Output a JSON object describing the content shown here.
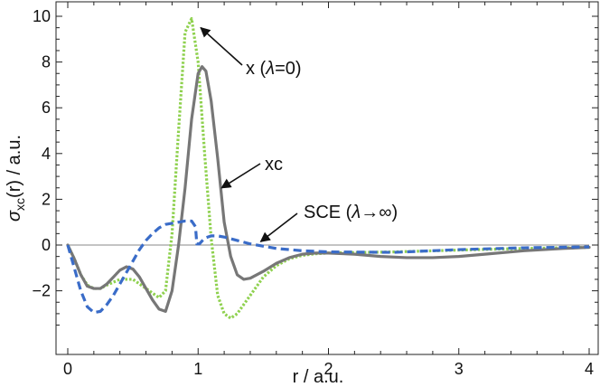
{
  "chart_data": {
    "type": "line",
    "xlabel": "r / a.u.",
    "ylabel": "σxc(r) / a.u.",
    "ylabel_parts": {
      "sym": "σ",
      "sub": "xc",
      "rest": "(r) / a.u."
    },
    "xlim": [
      0,
      4
    ],
    "ylim": [
      -4,
      10
    ],
    "x_ticks": [
      0,
      1,
      2,
      3,
      4
    ],
    "x_tick_labels": [
      "0",
      "1",
      "2",
      "3",
      "4"
    ],
    "y_ticks": [
      -2,
      0,
      2,
      4,
      6,
      8,
      10
    ],
    "y_tick_labels": [
      "−2",
      "0",
      "2",
      "4",
      "6",
      "8",
      "10"
    ],
    "grid": false,
    "zero_line": true,
    "series": [
      {
        "name": "x (λ=0)",
        "color": "#8fd14f",
        "style": "dotted",
        "x": [
          0.0,
          0.05,
          0.1,
          0.15,
          0.2,
          0.25,
          0.3,
          0.4,
          0.5,
          0.6,
          0.7,
          0.75,
          0.8,
          0.85,
          0.9,
          0.95,
          1.0,
          1.05,
          1.1,
          1.15,
          1.2,
          1.25,
          1.3,
          1.4,
          1.5,
          1.6,
          1.7,
          1.8,
          1.9,
          2.0,
          2.5,
          3.0,
          3.5,
          4.0
        ],
        "y": [
          0.0,
          -0.6,
          -1.3,
          -1.75,
          -1.9,
          -1.9,
          -1.75,
          -1.5,
          -1.5,
          -1.9,
          -2.3,
          -2.0,
          0.5,
          5.0,
          9.3,
          9.9,
          8.0,
          4.0,
          0.3,
          -2.2,
          -3.0,
          -3.2,
          -3.0,
          -2.2,
          -1.4,
          -0.9,
          -0.6,
          -0.45,
          -0.38,
          -0.35,
          -0.3,
          -0.22,
          -0.15,
          -0.1
        ]
      },
      {
        "name": "xc",
        "color": "#777777",
        "style": "solid",
        "x": [
          0.0,
          0.05,
          0.1,
          0.15,
          0.2,
          0.25,
          0.3,
          0.35,
          0.4,
          0.45,
          0.5,
          0.55,
          0.6,
          0.65,
          0.7,
          0.75,
          0.8,
          0.85,
          0.9,
          0.95,
          1.0,
          1.03,
          1.06,
          1.1,
          1.15,
          1.2,
          1.25,
          1.3,
          1.35,
          1.4,
          1.5,
          1.6,
          1.7,
          1.8,
          1.9,
          2.0,
          2.2,
          2.4,
          2.6,
          2.8,
          3.0,
          3.2,
          3.5,
          3.8,
          4.0
        ],
        "y": [
          0.0,
          -0.6,
          -1.3,
          -1.8,
          -1.9,
          -1.9,
          -1.7,
          -1.4,
          -1.1,
          -0.95,
          -1.05,
          -1.4,
          -1.9,
          -2.4,
          -2.8,
          -2.9,
          -2.0,
          0.0,
          2.5,
          5.5,
          7.5,
          7.8,
          7.6,
          6.3,
          3.8,
          1.0,
          -0.5,
          -1.3,
          -1.5,
          -1.45,
          -1.15,
          -0.8,
          -0.55,
          -0.4,
          -0.35,
          -0.35,
          -0.4,
          -0.5,
          -0.55,
          -0.55,
          -0.5,
          -0.4,
          -0.25,
          -0.15,
          -0.1
        ]
      },
      {
        "name": "SCE (λ→∞)",
        "color": "#3a6cc8",
        "style": "dashed",
        "x": [
          0.0,
          0.05,
          0.1,
          0.15,
          0.2,
          0.25,
          0.3,
          0.35,
          0.4,
          0.45,
          0.5,
          0.55,
          0.6,
          0.65,
          0.7,
          0.75,
          0.8,
          0.85,
          0.9,
          0.95,
          0.98,
          0.99,
          1.01,
          1.05,
          1.1,
          1.15,
          1.2,
          1.3,
          1.4,
          1.5,
          1.6,
          1.7,
          1.8,
          2.0,
          2.5,
          3.0,
          3.5,
          4.0
        ],
        "y": [
          0.0,
          -1.0,
          -2.0,
          -2.7,
          -2.95,
          -2.9,
          -2.6,
          -2.2,
          -1.7,
          -1.2,
          -0.7,
          -0.2,
          0.2,
          0.5,
          0.75,
          0.9,
          0.95,
          1.0,
          1.05,
          1.05,
          0.8,
          0.05,
          0.05,
          0.3,
          0.4,
          0.4,
          0.35,
          0.2,
          0.05,
          -0.05,
          -0.15,
          -0.2,
          -0.25,
          -0.3,
          -0.32,
          -0.2,
          -0.12,
          -0.08
        ]
      }
    ],
    "annotations": [
      {
        "text": "x (λ=0)",
        "parts": [
          "x (",
          "λ",
          "=0)"
        ],
        "points_to_series": "x (λ=0)",
        "arrow_tip": [
          1.02,
          9.5
        ]
      },
      {
        "text": "xc",
        "parts": [
          "xc"
        ],
        "points_to_series": "xc",
        "arrow_tip": [
          1.18,
          2.5
        ]
      },
      {
        "text": "SCE (λ→∞)",
        "parts": [
          "SCE (",
          "λ",
          "→∞)"
        ],
        "points_to_series": "SCE (λ→∞)",
        "arrow_tip": [
          1.48,
          0.15
        ]
      }
    ]
  }
}
